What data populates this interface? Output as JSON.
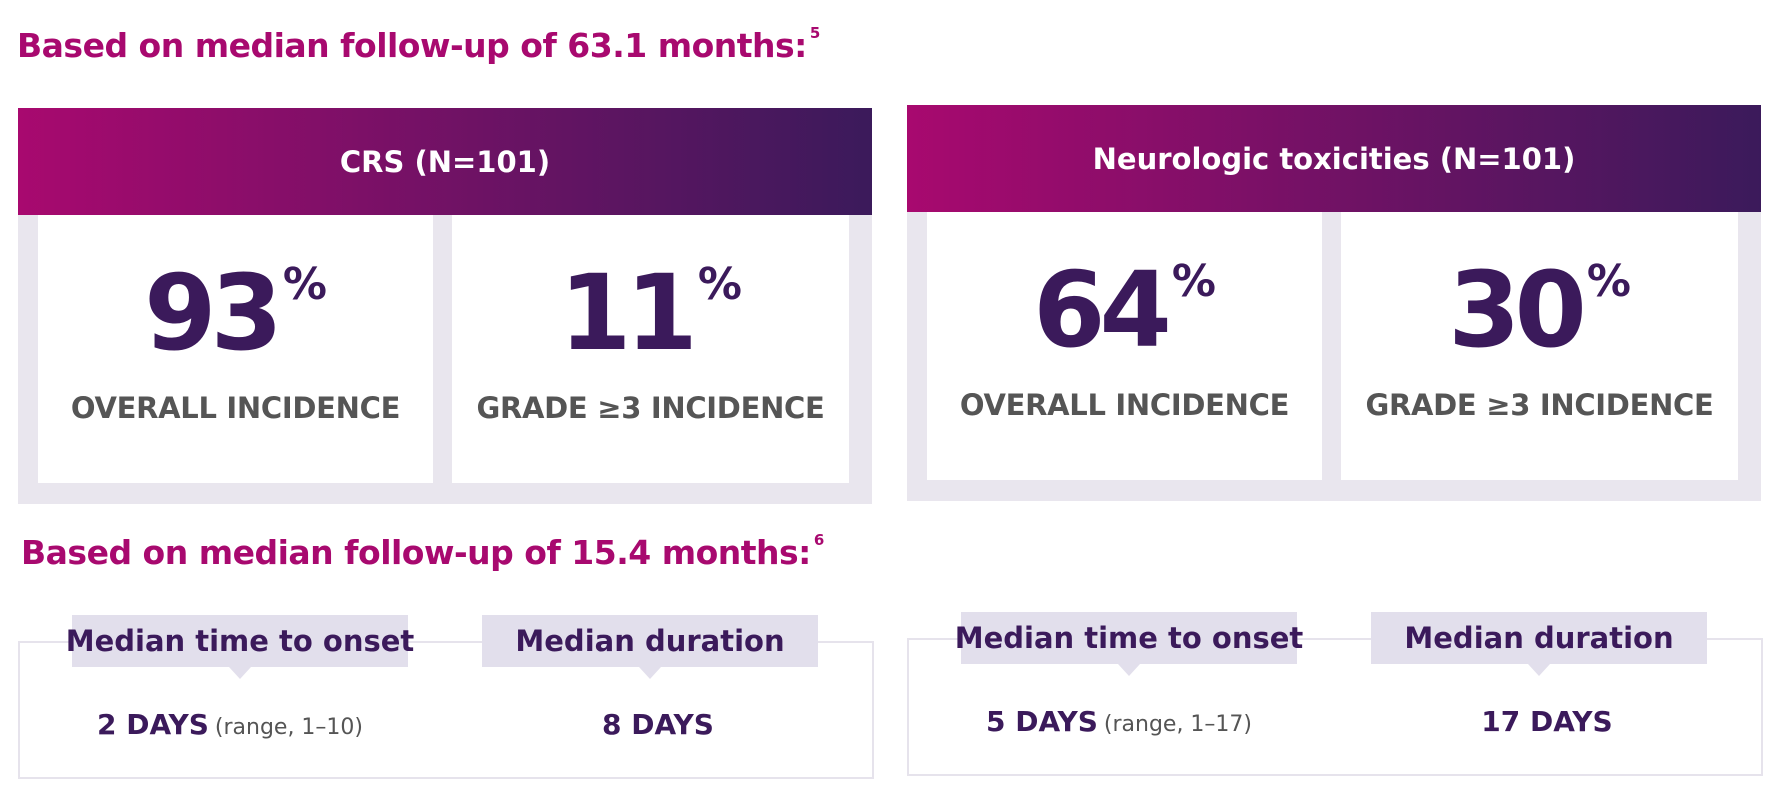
{
  "sections": [
    {
      "heading": "Based on median follow-up of 63.1 months:",
      "ref": "5"
    },
    {
      "heading": "Based on median follow-up of 15.4 months:",
      "ref": "6"
    }
  ],
  "panels": [
    {
      "title": "CRS (N=101)",
      "stats": [
        {
          "value": "93",
          "unit": "%",
          "label": "OVERALL INCIDENCE"
        },
        {
          "value": "11",
          "unit": "%",
          "label": "GRADE ≥3 INCIDENCE"
        }
      ],
      "timing": {
        "onset_label": "Median time to onset",
        "onset_value": "2 DAYS",
        "onset_range": "(range, 1–10)",
        "duration_label": "Median duration",
        "duration_value": "8 DAYS"
      }
    },
    {
      "title": "Neurologic toxicities (N=101)",
      "stats": [
        {
          "value": "64",
          "unit": "%",
          "label": "OVERALL INCIDENCE"
        },
        {
          "value": "30",
          "unit": "%",
          "label": "GRADE ≥3 INCIDENCE"
        }
      ],
      "timing": {
        "onset_label": "Median time to onset",
        "onset_value": "5 DAYS",
        "onset_range": "(range, 1–17)",
        "duration_label": "Median duration",
        "duration_value": "17 DAYS"
      }
    }
  ],
  "colors": {
    "heading": "#a8096f",
    "gradient_start": "#a8096f",
    "gradient_end": "#3b1a5b",
    "stat_value": "#3b1a5b",
    "stat_label": "#555555",
    "panel_bg": "#e9e6ee",
    "tag_bg": "#e2dfec"
  }
}
